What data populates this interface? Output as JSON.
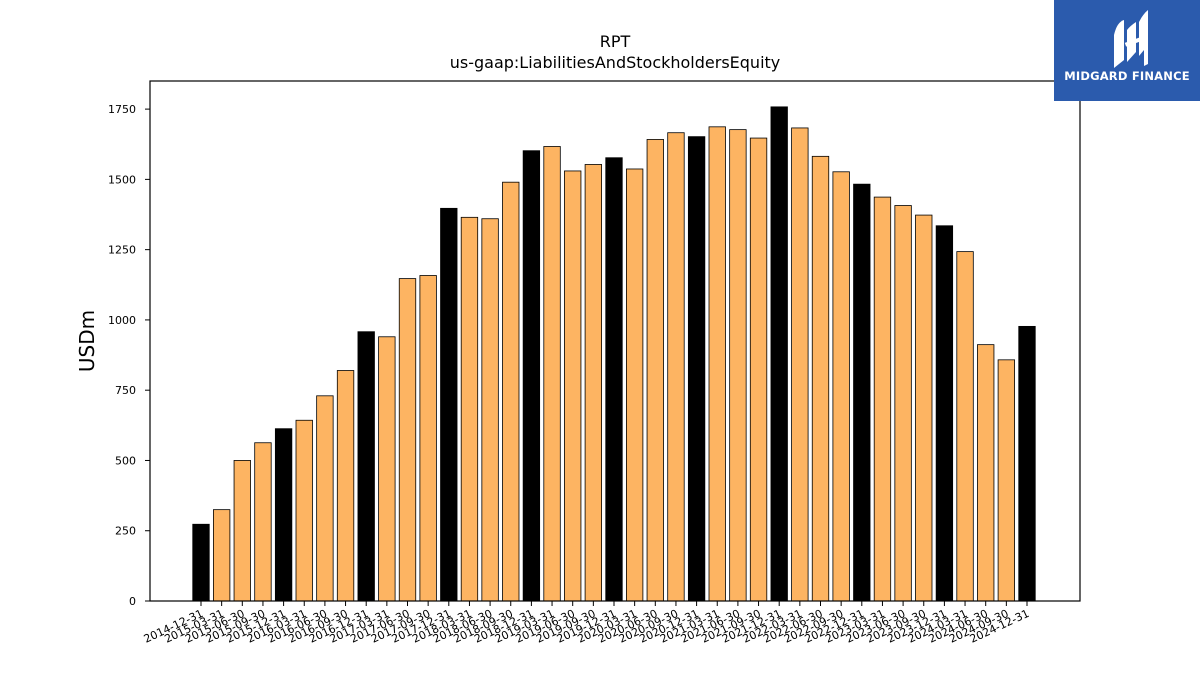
{
  "brand": {
    "name": "MIDGARD FINANCE",
    "bg_color": "#2b5bad"
  },
  "chart_data": {
    "type": "bar",
    "title": "RPT",
    "subtitle": "us-gaap:LiabilitiesAndStockholdersEquity",
    "xlabel": "",
    "ylabel": "USDm",
    "ylim": [
      0,
      1850
    ],
    "yticks": [
      0,
      250,
      500,
      750,
      1000,
      1250,
      1500,
      1750
    ],
    "grid": false,
    "colors": {
      "quarter": "#fdb462",
      "year_end": "#000000",
      "edge": "#000000"
    },
    "categories": [
      "2014-12-31",
      "2015-03-31",
      "2015-06-30",
      "2015-09-30",
      "2015-12-31",
      "2016-03-31",
      "2016-06-30",
      "2016-09-30",
      "2016-12-31",
      "2017-03-31",
      "2017-06-30",
      "2017-09-30",
      "2017-12-31",
      "2018-03-31",
      "2018-06-30",
      "2018-09-30",
      "2018-12-31",
      "2019-03-31",
      "2019-06-30",
      "2019-09-30",
      "2019-12-31",
      "2020-03-31",
      "2020-06-30",
      "2020-09-30",
      "2020-12-31",
      "2021-03-31",
      "2021-06-30",
      "2021-09-30",
      "2021-12-31",
      "2022-03-31",
      "2022-06-30",
      "2022-09-30",
      "2022-12-31",
      "2023-03-31",
      "2023-06-30",
      "2023-09-30",
      "2023-12-31",
      "2024-03-31",
      "2024-06-30",
      "2024-09-30",
      "2024-12-31"
    ],
    "values": [
      273,
      325,
      500,
      563,
      613,
      643,
      730,
      820,
      958,
      940,
      1147,
      1158,
      1397,
      1365,
      1360,
      1490,
      1602,
      1617,
      1530,
      1553,
      1577,
      1537,
      1642,
      1666,
      1652,
      1687,
      1677,
      1647,
      1758,
      1683,
      1582,
      1527,
      1483,
      1437,
      1407,
      1373,
      1335,
      1243,
      912,
      858,
      977
    ]
  }
}
